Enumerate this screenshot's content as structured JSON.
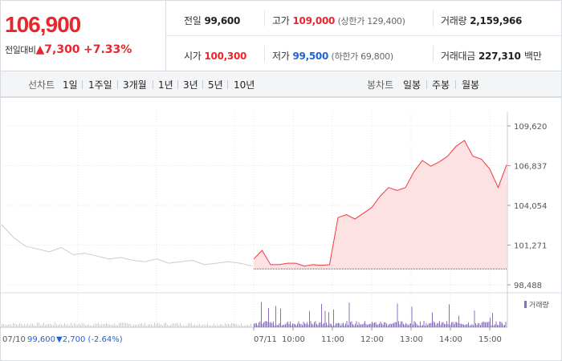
{
  "summary": {
    "price": "106,900",
    "change_label": "전일대비",
    "change_arrow": "▲",
    "change_value": "7,300",
    "change_rate": "+7.33%",
    "prev_close_label": "전일",
    "prev_close": "99,600",
    "high_label": "고가",
    "high": "109,000",
    "upper_limit": "(상한가 129,400)",
    "volume_label": "거래량",
    "volume": "2,159,966",
    "open_label": "시가",
    "open": "100,300",
    "low_label": "저가",
    "low": "99,500",
    "lower_limit": "(하한가 69,800)",
    "amount_label": "거래대금",
    "amount": "227,310",
    "amount_unit": "백만"
  },
  "toolbar": {
    "line_label": "선차트",
    "line_items": [
      "1일",
      "1주일",
      "3개월",
      "1년",
      "3년",
      "5년",
      "10년"
    ],
    "active_index": 0,
    "candle_label": "봉차트",
    "candle_items": [
      "일봉",
      "주봉",
      "월봉"
    ]
  },
  "colors": {
    "up": "#e8262d",
    "down": "#1e63d6",
    "volume": "#8b6fbf",
    "prev_line": "#cccccc"
  },
  "chart_data": {
    "type": "line",
    "y_ticks": [
      "109,620",
      "106,837",
      "104,054",
      "101,271",
      "98,488"
    ],
    "ylim": [
      98488,
      109620
    ],
    "baseline": 99600,
    "x_labels": [
      "07/10",
      "07/11",
      "10:00",
      "11:00",
      "12:00",
      "13:00",
      "14:00",
      "15:00"
    ],
    "prev_day_label": "07/10",
    "prev_day_close": "99,600",
    "prev_day_change": "▼2,700 (-2.64%)",
    "volume_legend": "거래량",
    "prev_series": [
      102700,
      101800,
      101200,
      101000,
      100800,
      101100,
      100600,
      100700,
      100500,
      100300,
      100400,
      100200,
      100100,
      100300,
      100000,
      100100,
      100200,
      99900,
      100000,
      100100,
      100000,
      99800
    ],
    "today_series": [
      100300,
      100900,
      99900,
      99900,
      100000,
      100000,
      99800,
      99900,
      99850,
      99900,
      103200,
      103400,
      103100,
      103500,
      103900,
      104700,
      105300,
      105100,
      105300,
      106400,
      107200,
      106800,
      107100,
      107500,
      108200,
      108600,
      107500,
      107300,
      106600,
      105300,
      106900
    ]
  }
}
